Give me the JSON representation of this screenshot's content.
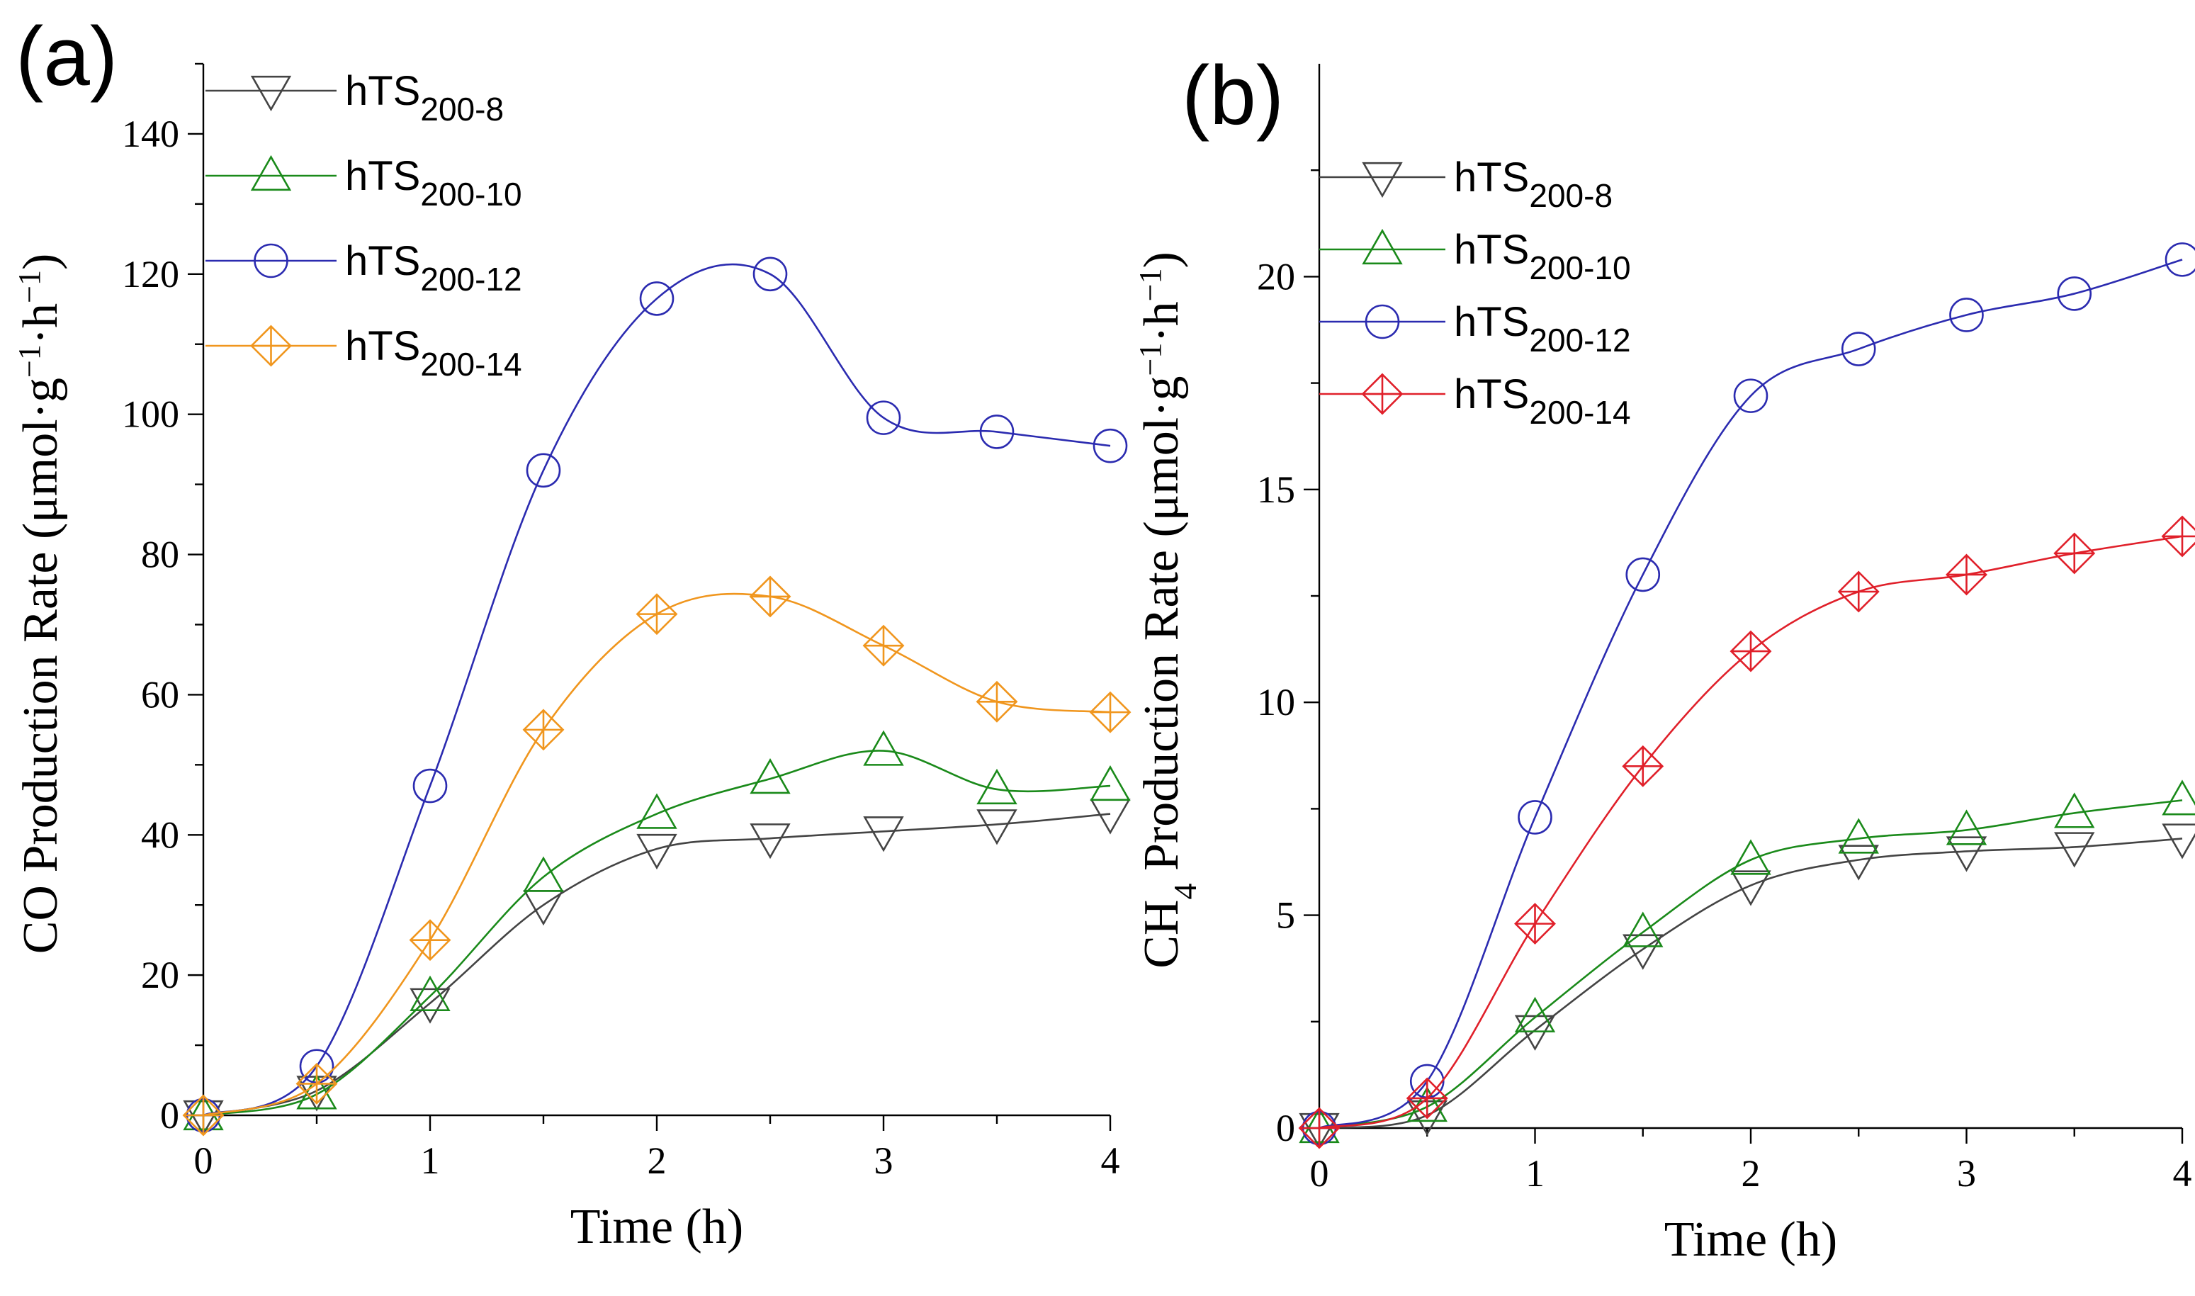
{
  "chart_data": [
    {
      "type": "line",
      "panel_label": "(a)",
      "title": "",
      "xlabel": "Time (h)",
      "ylabel": {
        "main": "CO Production Rate (μmol·g",
        "sup1": "−1",
        "mid": "·h",
        "sup2": "−1",
        "end": ")"
      },
      "x": [
        0,
        0.5,
        1,
        1.5,
        2,
        2.5,
        3,
        3.5,
        4
      ],
      "xlim": [
        0,
        4
      ],
      "ylim": [
        0,
        150
      ],
      "xticks": [
        "0",
        "1",
        "2",
        "3",
        "4"
      ],
      "yticks": [
        "0",
        "20",
        "40",
        "60",
        "80",
        "100",
        "120",
        "140"
      ],
      "legend_position": "top-left",
      "series": [
        {
          "name": "hTS",
          "subscript": "200-8",
          "marker": "triangle-down",
          "color": "#444444",
          "values": [
            0,
            3.5,
            16,
            30,
            38,
            39.5,
            40.5,
            41.5,
            43
          ]
        },
        {
          "name": "hTS",
          "subscript": "200-10",
          "marker": "triangle-up",
          "color": "#1a8a1a",
          "values": [
            0,
            3,
            17,
            34,
            43,
            48,
            52,
            46.5,
            47
          ]
        },
        {
          "name": "hTS",
          "subscript": "200-12",
          "marker": "circle",
          "color": "#2b2bb0",
          "values": [
            0,
            7,
            47,
            92,
            116.5,
            120,
            99.5,
            97.5,
            95.5
          ]
        },
        {
          "name": "hTS",
          "subscript": "200-14",
          "marker": "diamond-cross",
          "color": "#f0961e",
          "values": [
            0,
            4.5,
            25,
            55,
            71.5,
            74,
            67,
            59,
            57.5
          ]
        }
      ]
    },
    {
      "type": "line",
      "panel_label": "(b)",
      "title": "",
      "xlabel": "Time (h)",
      "ylabel": {
        "main": "CH",
        "sub": "4",
        "main2": " Production Rate (μmol·g",
        "sup1": "−1",
        "mid": "·h",
        "sup2": "−1",
        "end": ")"
      },
      "x": [
        0,
        0.5,
        1,
        1.5,
        2,
        2.5,
        3,
        3.5,
        4
      ],
      "xlim": [
        0,
        4
      ],
      "ylim": [
        0,
        25
      ],
      "xticks": [
        "0",
        "1",
        "2",
        "3",
        "4"
      ],
      "yticks": [
        "0",
        "5",
        "10",
        "15",
        "20"
      ],
      "legend_position": "top-left",
      "series": [
        {
          "name": "hTS",
          "subscript": "200-8",
          "marker": "triangle-down",
          "color": "#444444",
          "values": [
            0,
            0.3,
            2.3,
            4.2,
            5.7,
            6.3,
            6.5,
            6.6,
            6.8
          ]
        },
        {
          "name": "hTS",
          "subscript": "200-10",
          "marker": "triangle-up",
          "color": "#1a8a1a",
          "values": [
            0,
            0.5,
            2.6,
            4.6,
            6.3,
            6.8,
            7.0,
            7.4,
            7.7
          ]
        },
        {
          "name": "hTS",
          "subscript": "200-12",
          "marker": "circle",
          "color": "#2b2bb0",
          "values": [
            0,
            1.1,
            7.3,
            13,
            17.2,
            18.3,
            19.1,
            19.6,
            20.4
          ]
        },
        {
          "name": "hTS",
          "subscript": "200-14",
          "marker": "diamond-cross",
          "color": "#e0202a",
          "values": [
            0,
            0.7,
            4.8,
            8.5,
            11.2,
            12.6,
            13.0,
            13.5,
            13.9
          ]
        }
      ]
    }
  ]
}
